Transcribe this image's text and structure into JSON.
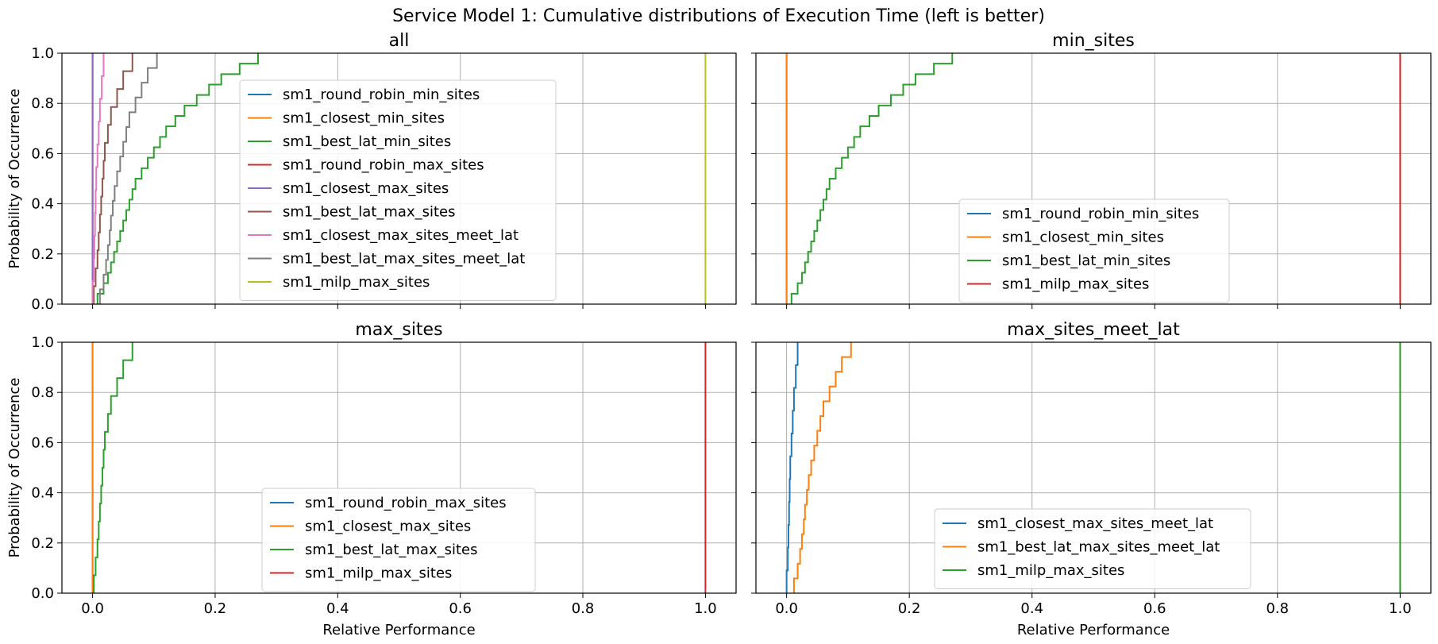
{
  "figure": {
    "suptitle": "Service Model 1: Cumulative distributions of Execution Time (left is better)"
  },
  "colors": {
    "C0": "#1f77b4",
    "C1": "#ff7f0e",
    "C2": "#2ca02c",
    "C3": "#d62728",
    "C4": "#9467bd",
    "C5": "#8c564b",
    "C6": "#e377c2",
    "C7": "#7f7f7f",
    "C8": "#bcbd22",
    "grid": "#b0b0b0"
  },
  "chart_data": [
    {
      "type": "line",
      "subtype": "ecdf",
      "title": "all",
      "xlabel": "",
      "ylabel": "Probability of Occurrence",
      "xlim": [
        -0.05,
        1.05
      ],
      "ylim": [
        0.0,
        1.0
      ],
      "xticks": [
        "0.0",
        "0.2",
        "0.4",
        "0.6",
        "0.8",
        "1.0"
      ],
      "yticks": [
        "0.0",
        "0.2",
        "0.4",
        "0.6",
        "0.8",
        "1.0"
      ],
      "grid": true,
      "legend": "center",
      "series": [
        {
          "name": "sm1_round_robin_min_sites",
          "color": "#1f77b4",
          "x": [
            0.0,
            0.0
          ]
        },
        {
          "name": "sm1_closest_min_sites",
          "color": "#ff7f0e",
          "x": [
            0.0,
            0.0
          ]
        },
        {
          "name": "sm1_best_lat_min_sites",
          "color": "#2ca02c",
          "x": [
            0.008,
            0.018,
            0.025,
            0.03,
            0.035,
            0.04,
            0.045,
            0.05,
            0.055,
            0.06,
            0.065,
            0.07,
            0.08,
            0.09,
            0.1,
            0.11,
            0.12,
            0.135,
            0.15,
            0.17,
            0.19,
            0.21,
            0.24,
            0.27
          ]
        },
        {
          "name": "sm1_round_robin_max_sites",
          "color": "#d62728",
          "x": [
            0.0,
            0.0
          ]
        },
        {
          "name": "sm1_closest_max_sites",
          "color": "#9467bd",
          "x": [
            0.0,
            0.0
          ]
        },
        {
          "name": "sm1_best_lat_max_sites",
          "color": "#8c564b",
          "x": [
            0.002,
            0.005,
            0.008,
            0.01,
            0.012,
            0.014,
            0.016,
            0.018,
            0.02,
            0.025,
            0.03,
            0.04,
            0.05,
            0.065
          ]
        },
        {
          "name": "sm1_closest_max_sites_meet_lat",
          "color": "#e377c2",
          "x": [
            0.0,
            0.002,
            0.003,
            0.004,
            0.005,
            0.006,
            0.008,
            0.01,
            0.012,
            0.015,
            0.018
          ]
        },
        {
          "name": "sm1_best_lat_max_sites_meet_lat",
          "color": "#7f7f7f",
          "x": [
            0.012,
            0.018,
            0.022,
            0.025,
            0.028,
            0.03,
            0.033,
            0.036,
            0.04,
            0.045,
            0.05,
            0.055,
            0.06,
            0.07,
            0.08,
            0.09,
            0.105
          ]
        },
        {
          "name": "sm1_milp_max_sites",
          "color": "#bcbd22",
          "x": [
            1.0,
            1.0
          ]
        }
      ]
    },
    {
      "type": "line",
      "subtype": "ecdf",
      "title": "min_sites",
      "xlabel": "",
      "ylabel": "",
      "xlim": [
        -0.05,
        1.05
      ],
      "ylim": [
        0.0,
        1.0
      ],
      "xticks": [
        "0.0",
        "0.2",
        "0.4",
        "0.6",
        "0.8",
        "1.0"
      ],
      "yticks": [
        "0.0",
        "0.2",
        "0.4",
        "0.6",
        "0.8",
        "1.0"
      ],
      "grid": true,
      "legend": "lower center",
      "series": [
        {
          "name": "sm1_round_robin_min_sites",
          "color": "#1f77b4",
          "x": [
            0.0,
            0.0
          ]
        },
        {
          "name": "sm1_closest_min_sites",
          "color": "#ff7f0e",
          "x": [
            0.0,
            0.0
          ]
        },
        {
          "name": "sm1_best_lat_min_sites",
          "color": "#2ca02c",
          "x": [
            0.008,
            0.018,
            0.025,
            0.03,
            0.035,
            0.04,
            0.045,
            0.05,
            0.055,
            0.06,
            0.065,
            0.07,
            0.08,
            0.09,
            0.1,
            0.11,
            0.12,
            0.135,
            0.15,
            0.17,
            0.19,
            0.21,
            0.24,
            0.27
          ]
        },
        {
          "name": "sm1_milp_max_sites",
          "color": "#d62728",
          "x": [
            1.0,
            1.0
          ]
        }
      ]
    },
    {
      "type": "line",
      "subtype": "ecdf",
      "title": "max_sites",
      "xlabel": "Relative Performance",
      "ylabel": "Probability of Occurrence",
      "xlim": [
        -0.05,
        1.05
      ],
      "ylim": [
        0.0,
        1.0
      ],
      "xticks": [
        "0.0",
        "0.2",
        "0.4",
        "0.6",
        "0.8",
        "1.0"
      ],
      "yticks": [
        "0.0",
        "0.2",
        "0.4",
        "0.6",
        "0.8",
        "1.0"
      ],
      "grid": true,
      "legend": "lower center",
      "series": [
        {
          "name": "sm1_round_robin_max_sites",
          "color": "#1f77b4",
          "x": [
            0.0,
            0.0
          ]
        },
        {
          "name": "sm1_closest_max_sites",
          "color": "#ff7f0e",
          "x": [
            0.0,
            0.0
          ]
        },
        {
          "name": "sm1_best_lat_max_sites",
          "color": "#2ca02c",
          "x": [
            0.002,
            0.005,
            0.008,
            0.01,
            0.012,
            0.014,
            0.016,
            0.018,
            0.02,
            0.025,
            0.03,
            0.04,
            0.05,
            0.065
          ]
        },
        {
          "name": "sm1_milp_max_sites",
          "color": "#d62728",
          "x": [
            1.0,
            1.0
          ]
        }
      ]
    },
    {
      "type": "line",
      "subtype": "ecdf",
      "title": "max_sites_meet_lat",
      "xlabel": "Relative Performance",
      "ylabel": "",
      "xlim": [
        -0.05,
        1.05
      ],
      "ylim": [
        0.0,
        1.0
      ],
      "xticks": [
        "0.0",
        "0.2",
        "0.4",
        "0.6",
        "0.8",
        "1.0"
      ],
      "yticks": [
        "0.0",
        "0.2",
        "0.4",
        "0.6",
        "0.8",
        "1.0"
      ],
      "grid": true,
      "legend": "lower center",
      "series": [
        {
          "name": "sm1_closest_max_sites_meet_lat",
          "color": "#1f77b4",
          "x": [
            0.0,
            0.002,
            0.003,
            0.004,
            0.005,
            0.006,
            0.008,
            0.01,
            0.012,
            0.015,
            0.018
          ]
        },
        {
          "name": "sm1_best_lat_max_sites_meet_lat",
          "color": "#ff7f0e",
          "x": [
            0.012,
            0.018,
            0.022,
            0.025,
            0.028,
            0.03,
            0.033,
            0.036,
            0.04,
            0.045,
            0.05,
            0.055,
            0.06,
            0.07,
            0.08,
            0.09,
            0.105
          ]
        },
        {
          "name": "sm1_milp_max_sites",
          "color": "#2ca02c",
          "x": [
            1.0,
            1.0
          ]
        }
      ]
    }
  ]
}
